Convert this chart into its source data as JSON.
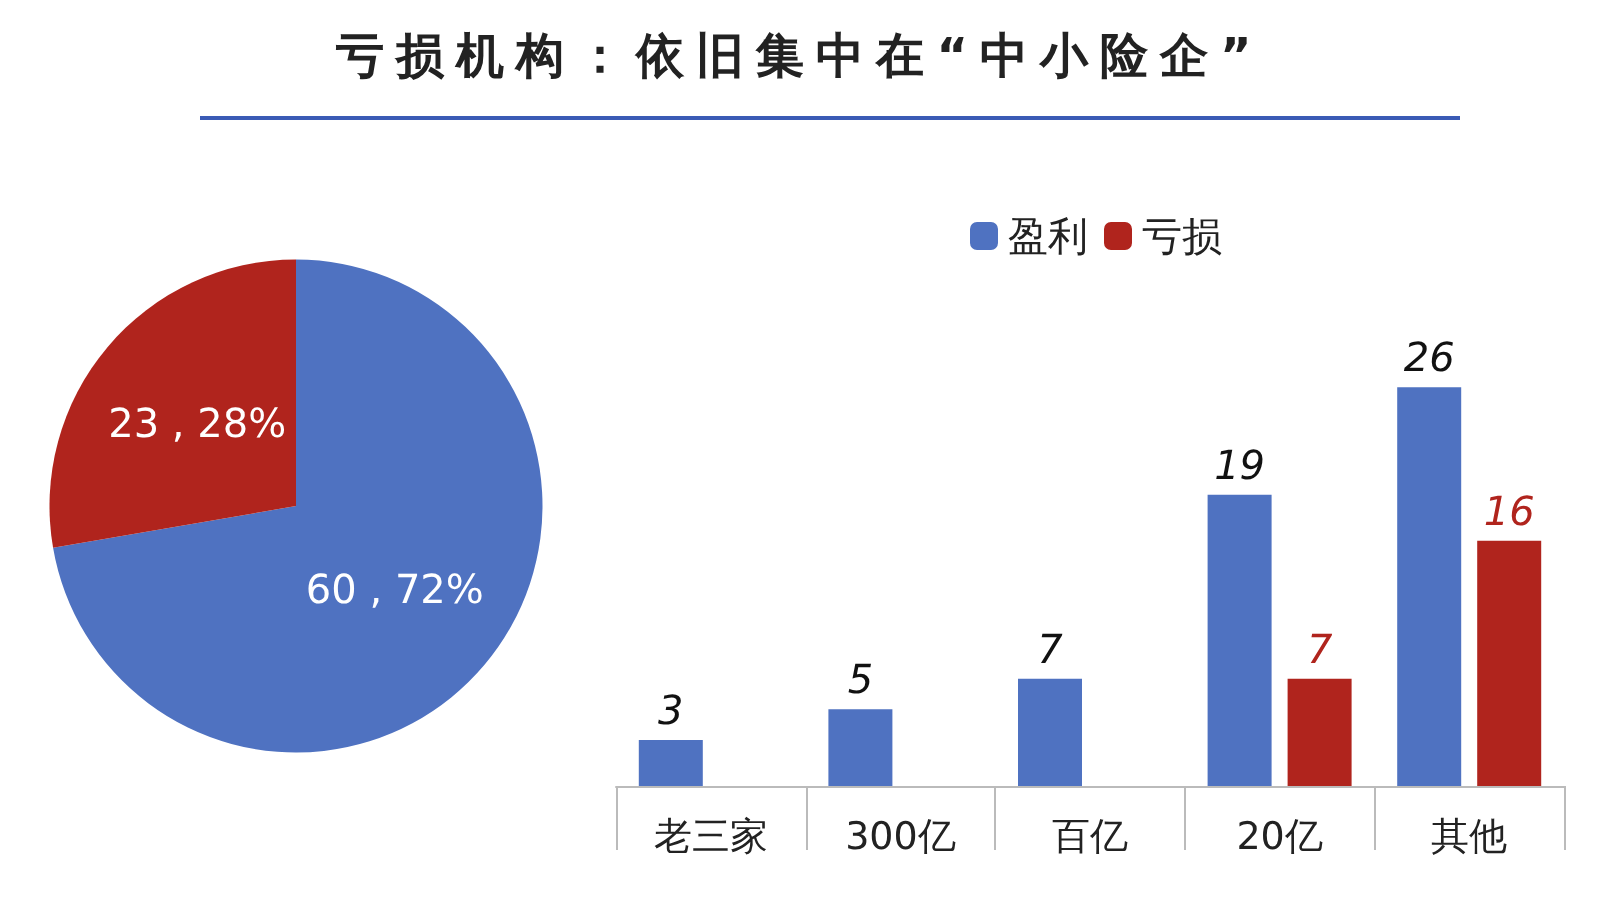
{
  "chart_data": [
    {
      "type": "pie",
      "title": "亏损机构：依旧集中在“中小险企”",
      "categories": [
        null,
        null
      ],
      "values": [
        60,
        23
      ],
      "colors": [
        "#4f72c1",
        "#b0241d"
      ],
      "value_labels": [
        "60 , 72%",
        "23 , 28%"
      ],
      "legend": false
    },
    {
      "type": "bar",
      "categories": [
        "老三家",
        "300亿",
        "百亿",
        "20亿",
        "其他"
      ],
      "series": [
        {
          "name": "盈利",
          "color": "#4f72c1",
          "values": [
            3,
            5,
            7,
            19,
            26
          ]
        },
        {
          "name": "亏损",
          "color": "#b0241d",
          "values": [
            null,
            null,
            null,
            7,
            16
          ]
        }
      ],
      "data_labels": true,
      "legend": "top"
    }
  ]
}
